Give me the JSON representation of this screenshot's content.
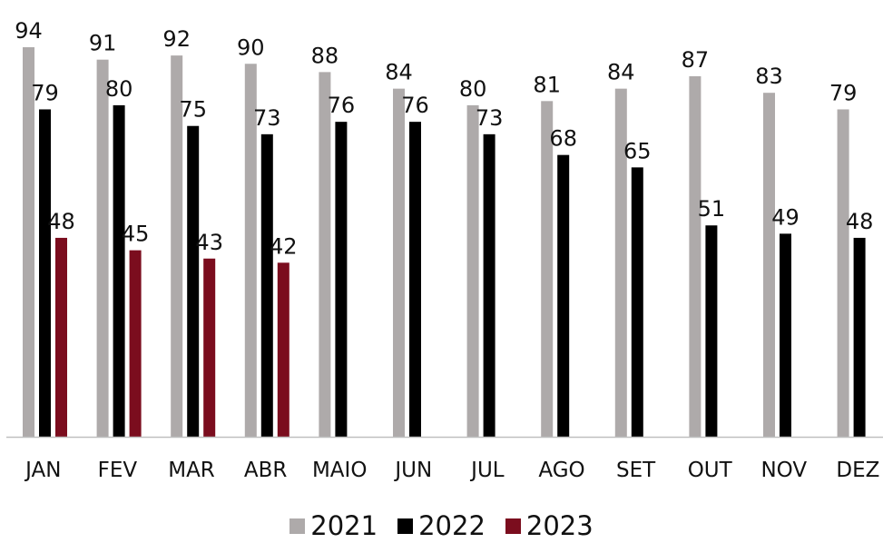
{
  "chart_data": {
    "type": "bar",
    "title": "",
    "xlabel": "",
    "ylabel": "",
    "ylim": [
      0,
      94
    ],
    "grid": false,
    "legend": "bottom-center",
    "categories": [
      "JAN",
      "FEV",
      "MAR",
      "ABR",
      "MAIO",
      "JUN",
      "JUL",
      "AGO",
      "SET",
      "OUT",
      "NOV",
      "DEZ"
    ],
    "series": [
      {
        "name": "2021",
        "color": "#aeaaaa",
        "values": [
          94,
          91,
          92,
          90,
          88,
          84,
          80,
          81,
          84,
          87,
          83,
          79
        ]
      },
      {
        "name": "2022",
        "color": "#000000",
        "values": [
          79,
          80,
          75,
          73,
          76,
          76,
          73,
          68,
          65,
          51,
          49,
          48
        ]
      },
      {
        "name": "2023",
        "color": "#7b0d1e",
        "values": [
          48,
          45,
          43,
          42,
          null,
          null,
          null,
          null,
          null,
          null,
          null,
          null
        ]
      }
    ]
  }
}
